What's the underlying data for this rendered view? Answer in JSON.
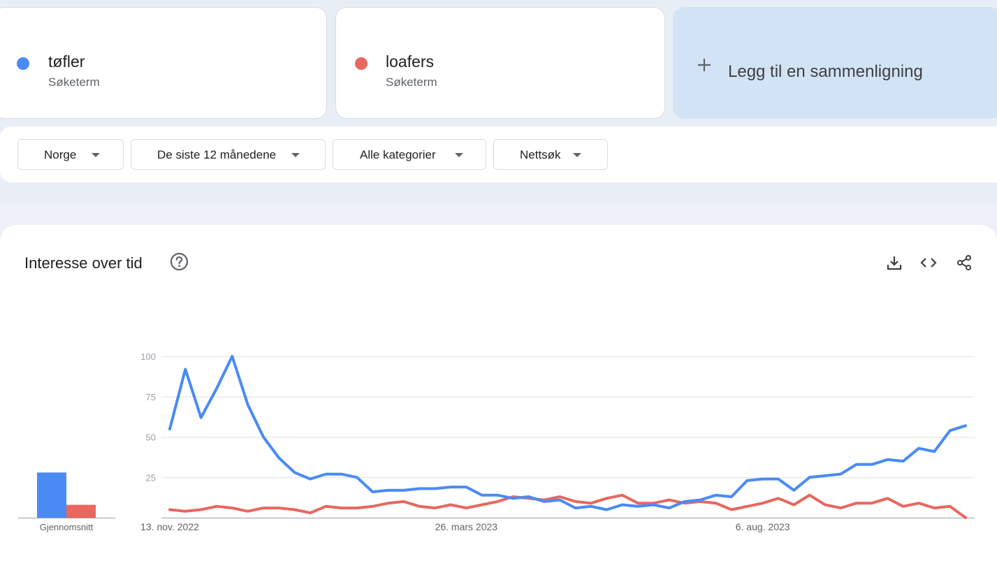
{
  "terms": [
    {
      "name": "tøfler",
      "subtitle": "Søketerm",
      "color": "#4a8af4"
    },
    {
      "name": "loafers",
      "subtitle": "Søketerm",
      "color": "#e8675e"
    }
  ],
  "add_comparison_label": "Legg til en sammenligning",
  "filters": {
    "region": "Norge",
    "time_range": "De siste 12 månedene",
    "category": "Alle kategorier",
    "search_type": "Nettsøk"
  },
  "chart_panel": {
    "title": "Interesse over tid",
    "icons": [
      "help-icon",
      "download-icon",
      "embed-icon",
      "share-icon"
    ]
  },
  "chart_data": [
    {
      "type": "bar",
      "xlabel": "Gjennomsnitt",
      "categories": [
        "tøfler",
        "loafers"
      ],
      "values": [
        28,
        8
      ],
      "ylim": [
        0,
        100
      ]
    },
    {
      "type": "line",
      "x_tick_labels": [
        "13. nov. 2022",
        "26. mars 2023",
        "6. aug. 2023"
      ],
      "y_ticks": [
        25,
        50,
        75,
        100
      ],
      "ylim": [
        0,
        100
      ],
      "grid": true,
      "series": [
        {
          "name": "tøfler",
          "color": "#4a8af4",
          "values": [
            55,
            92,
            62,
            80,
            100,
            70,
            50,
            37,
            28,
            24,
            27,
            27,
            25,
            16,
            17,
            17,
            18,
            18,
            19,
            19,
            14,
            14,
            12,
            13,
            10,
            11,
            6,
            7,
            5,
            8,
            7,
            8,
            6,
            10,
            11,
            14,
            13,
            23,
            24,
            24,
            17,
            25,
            26,
            27,
            33,
            33,
            36,
            35,
            43,
            41,
            54,
            57
          ]
        },
        {
          "name": "loafers",
          "color": "#e8675e",
          "values": [
            5,
            4,
            5,
            7,
            6,
            4,
            6,
            6,
            5,
            3,
            7,
            6,
            6,
            7,
            9,
            10,
            7,
            6,
            8,
            6,
            8,
            10,
            13,
            12,
            11,
            13,
            10,
            9,
            12,
            14,
            9,
            9,
            11,
            9,
            10,
            9,
            5,
            7,
            9,
            12,
            8,
            14,
            8,
            6,
            9,
            9,
            12,
            7,
            9,
            6,
            7,
            0
          ]
        }
      ]
    }
  ]
}
